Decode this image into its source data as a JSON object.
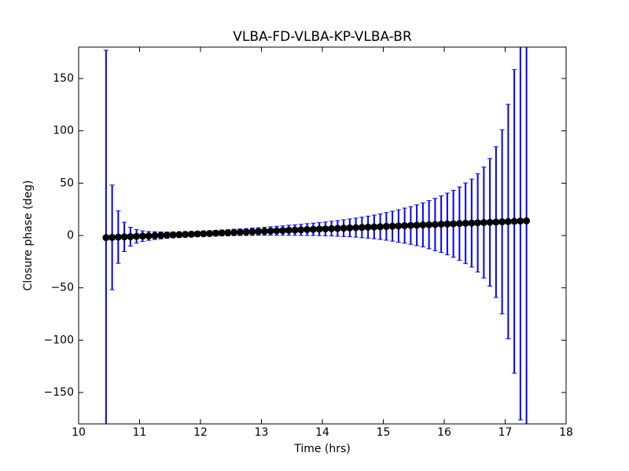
{
  "chart_data": {
    "type": "errorbar",
    "title": "VLBA-FD-VLBA-KP-VLBA-BR",
    "xlabel": "Time (hrs)",
    "ylabel": "Closure phase (deg)",
    "x": [
      10.45,
      10.55,
      10.65,
      10.75,
      10.85,
      10.95,
      11.05,
      11.15,
      11.25,
      11.35,
      11.45,
      11.55,
      11.65,
      11.75,
      11.85,
      11.95,
      12.05,
      12.15,
      12.25,
      12.35,
      12.45,
      12.55,
      12.65,
      12.75,
      12.85,
      12.95,
      13.05,
      13.15,
      13.25,
      13.35,
      13.45,
      13.55,
      13.65,
      13.75,
      13.85,
      13.95,
      14.05,
      14.15,
      14.25,
      14.35,
      14.45,
      14.55,
      14.65,
      14.75,
      14.85,
      14.95,
      15.05,
      15.15,
      15.25,
      15.35,
      15.45,
      15.55,
      15.65,
      15.75,
      15.85,
      15.95,
      16.05,
      16.15,
      16.25,
      16.35,
      16.45,
      16.55,
      16.65,
      16.75,
      16.85,
      16.95,
      17.05,
      17.15,
      17.25,
      17.35
    ],
    "values": [
      -2.0,
      -1.8,
      -1.5,
      -1.3,
      -1.1,
      -0.8,
      -0.6,
      -0.4,
      -0.1,
      0.1,
      0.3,
      0.6,
      0.8,
      1.0,
      1.2,
      1.5,
      1.7,
      1.9,
      2.2,
      2.4,
      2.6,
      2.9,
      3.1,
      3.3,
      3.6,
      3.8,
      4.0,
      4.3,
      4.5,
      4.7,
      5.0,
      5.2,
      5.4,
      5.7,
      5.9,
      6.1,
      6.3,
      6.6,
      6.8,
      7.0,
      7.3,
      7.5,
      7.7,
      8.0,
      8.2,
      8.4,
      8.7,
      8.9,
      9.1,
      9.4,
      9.6,
      9.8,
      10.1,
      10.3,
      10.5,
      10.8,
      11.0,
      11.2,
      11.4,
      11.7,
      11.9,
      12.1,
      12.4,
      12.6,
      12.8,
      13.1,
      13.3,
      13.5,
      13.8,
      14.0
    ],
    "errors": [
      179,
      50,
      25,
      14,
      9,
      6.5,
      5,
      4.2,
      3.7,
      3.3,
      3.0,
      2.8,
      2.7,
      2.6,
      2.5,
      2.5,
      2.5,
      2.6,
      2.7,
      2.8,
      2.9,
      3.0,
      3.1,
      3.3,
      3.5,
      3.6,
      3.8,
      4.0,
      4.3,
      4.5,
      4.8,
      5.0,
      5.3,
      5.6,
      5.9,
      6.2,
      6.6,
      7.0,
      7.5,
      8.0,
      8.5,
      9.1,
      9.8,
      10.5,
      11.3,
      12.2,
      13.2,
      14.3,
      15.5,
      16.8,
      18.0,
      19.5,
      21,
      23,
      25,
      27,
      29.5,
      32,
      35,
      38.5,
      42,
      47,
      53,
      61,
      72,
      88,
      112,
      145,
      190,
      250
    ],
    "color": "#0000ff",
    "marker_color": "#000000",
    "xlim": [
      10,
      18
    ],
    "xticks": [
      10,
      11,
      12,
      13,
      14,
      15,
      16,
      17,
      18
    ],
    "ylim": [
      -180,
      180
    ],
    "yticks": [
      {
        "value": -150,
        "label": "−150"
      },
      {
        "value": -100,
        "label": "−100"
      },
      {
        "value": -50,
        "label": "−50"
      },
      0,
      50,
      100,
      150
    ]
  }
}
